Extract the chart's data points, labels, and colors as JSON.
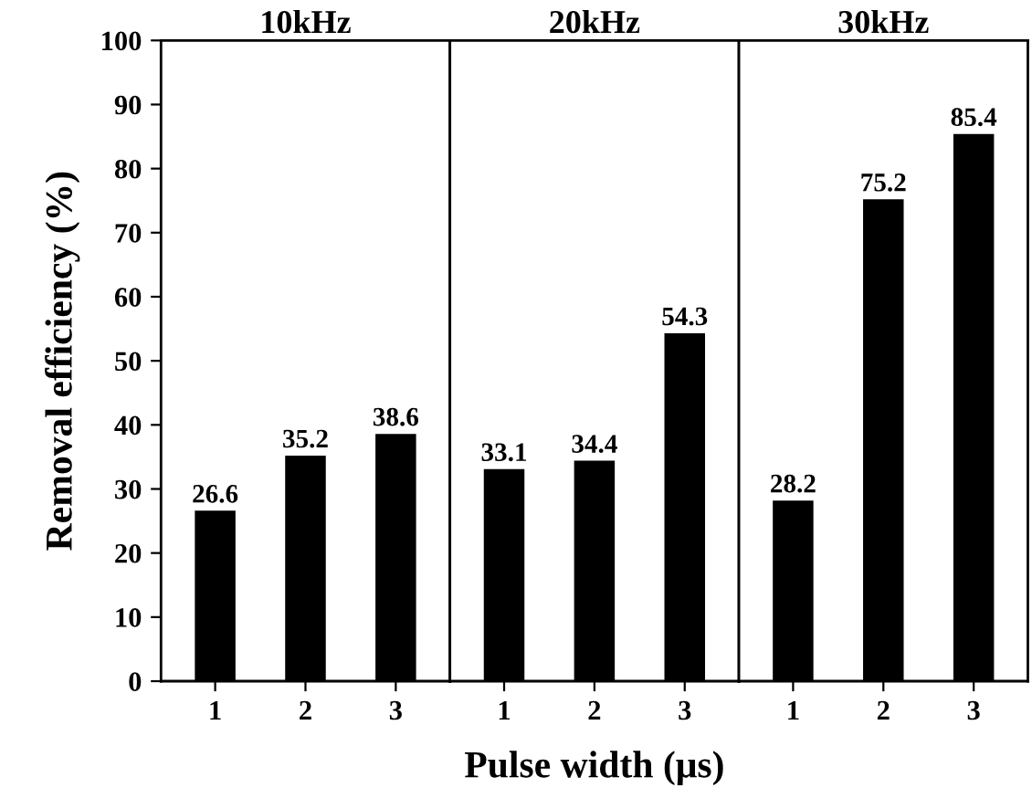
{
  "chart_data": [
    {
      "type": "bar",
      "title": "10kHz",
      "ylabel": "Removal efficiency (%)",
      "categories": [
        "1",
        "2",
        "3"
      ],
      "values": [
        26.6,
        35.2,
        38.6
      ],
      "color": "#000000",
      "ylim": [
        0,
        100
      ],
      "yticks": [
        0,
        10,
        20,
        30,
        40,
        50,
        60,
        70,
        80,
        90,
        100
      ],
      "data_labels": true,
      "grid": false
    },
    {
      "type": "bar",
      "title": "20kHz",
      "xlabel": "Pulse width (μs)",
      "categories": [
        "1",
        "2",
        "3"
      ],
      "values": [
        33.1,
        34.4,
        54.3
      ],
      "color": "#000000",
      "ylim": [
        0,
        100
      ],
      "tick_labels": "x",
      "data_labels": true,
      "grid": false
    },
    {
      "type": "bar",
      "title": "30kHz",
      "categories": [
        "1",
        "2",
        "3"
      ],
      "values": [
        28.2,
        75.2,
        85.4
      ],
      "color": "#000000",
      "ylim": [
        0,
        100
      ],
      "tick_labels": "x",
      "data_labels": true,
      "grid": false
    }
  ]
}
